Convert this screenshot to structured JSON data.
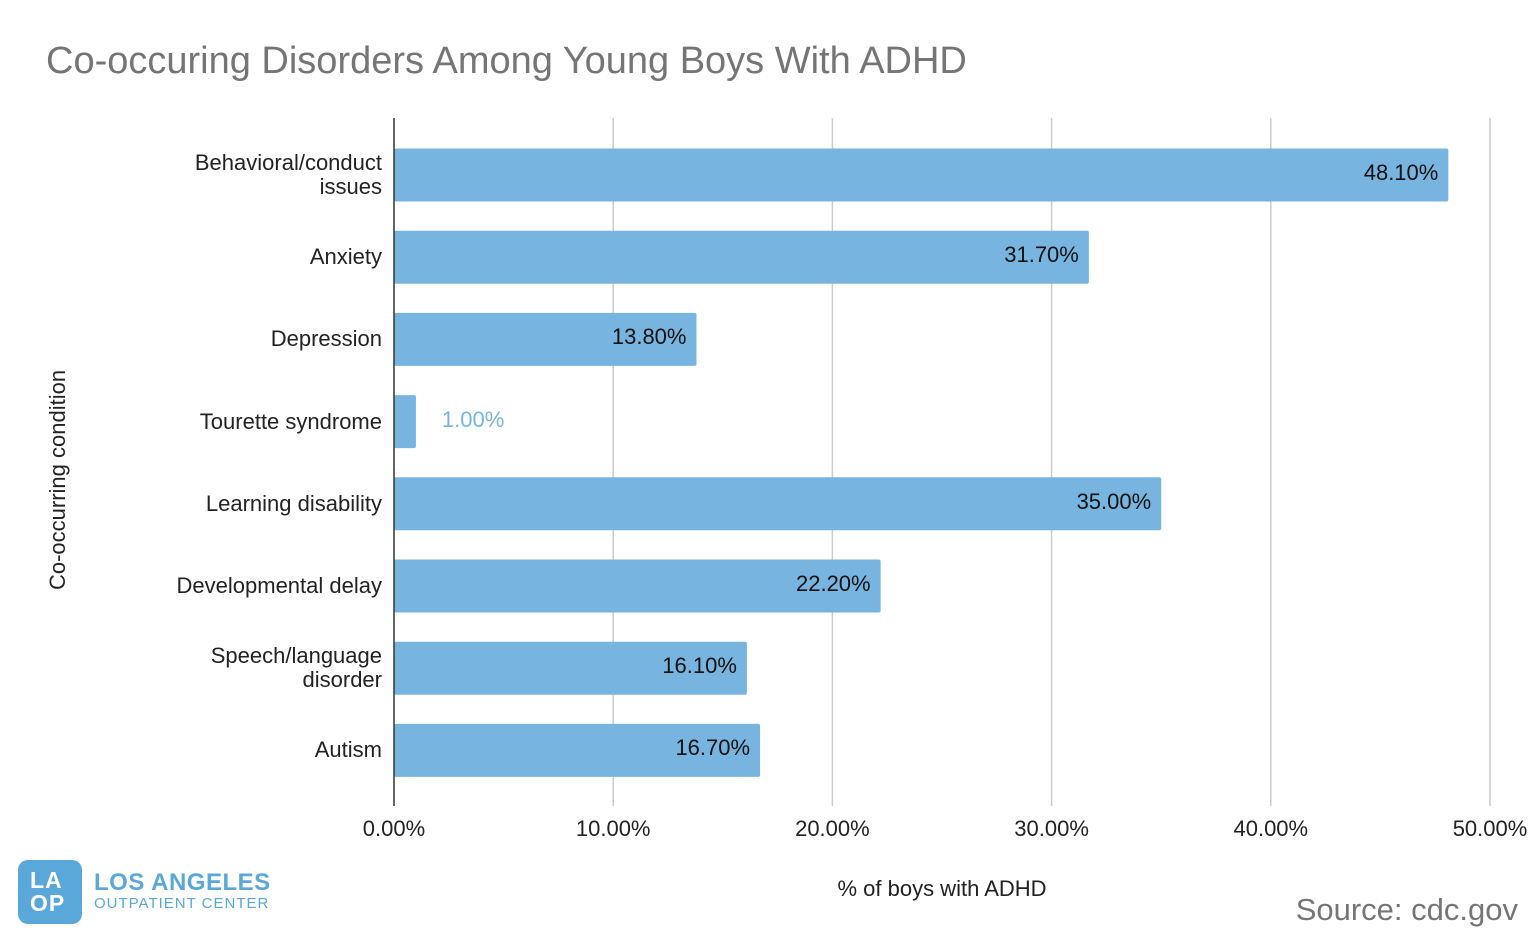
{
  "chart_data": {
    "type": "bar",
    "orientation": "horizontal",
    "title": "Co-occuring Disorders Among Young Boys With ADHD",
    "xlabel": "% of boys with ADHD",
    "ylabel": "Co-occurring condition",
    "xlim": [
      0,
      50
    ],
    "xticks": [
      "0.00%",
      "10.00%",
      "20.00%",
      "30.00%",
      "40.00%",
      "50.00%"
    ],
    "grid": true,
    "bar_color": "#77b5e0",
    "categories": [
      [
        "Behavioral/conduct",
        "issues"
      ],
      [
        "Anxiety"
      ],
      [
        "Depression"
      ],
      [
        "Tourette syndrome"
      ],
      [
        "Learning disability"
      ],
      [
        "Developmental delay"
      ],
      [
        "Speech/language",
        "disorder"
      ],
      [
        "Autism"
      ]
    ],
    "values": [
      48.1,
      31.7,
      13.8,
      1.0,
      35.0,
      22.2,
      16.1,
      16.7
    ],
    "data_labels": [
      "48.10%",
      "31.70%",
      "13.80%",
      "1.00%",
      "35.00%",
      "22.20%",
      "16.10%",
      "16.70%"
    ]
  },
  "logo": {
    "mark_top": "LA",
    "mark_bottom": "OP",
    "name": "LOS ANGELES",
    "subtitle": "OUTPATIENT CENTER",
    "color": "#5aa7d9"
  },
  "source": "Source: cdc.gov"
}
